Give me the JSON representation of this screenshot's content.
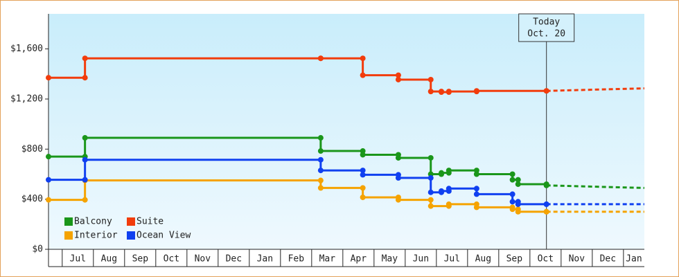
{
  "chart_data": {
    "type": "step-line",
    "xlim": [
      -0.44,
      18.67
    ],
    "xticks": [
      {
        "value": 0,
        "label": "Jul"
      },
      {
        "value": 1,
        "label": "Aug"
      },
      {
        "value": 2,
        "label": "Sep"
      },
      {
        "value": 3,
        "label": "Oct"
      },
      {
        "value": 4,
        "label": "Nov"
      },
      {
        "value": 5,
        "label": "Dec"
      },
      {
        "value": 6,
        "label": "Jan"
      },
      {
        "value": 7,
        "label": "Feb"
      },
      {
        "value": 8,
        "label": "Mar"
      },
      {
        "value": 9,
        "label": "Apr"
      },
      {
        "value": 10,
        "label": "May"
      },
      {
        "value": 11,
        "label": "Jun"
      },
      {
        "value": 12,
        "label": "Jul"
      },
      {
        "value": 13,
        "label": "Aug"
      },
      {
        "value": 14,
        "label": "Sep"
      },
      {
        "value": 15,
        "label": "Oct"
      },
      {
        "value": 16,
        "label": "Nov"
      },
      {
        "value": 17,
        "label": "Dec"
      },
      {
        "value": 18,
        "label": "Jan"
      }
    ],
    "ylim": [
      0,
      1880
    ],
    "yticks": [
      {
        "value": 0,
        "label": "$0"
      },
      {
        "value": 400,
        "label": "$400"
      },
      {
        "value": 800,
        "label": "$800"
      },
      {
        "value": 1200,
        "label": "$1,200"
      },
      {
        "value": 1600,
        "label": "$1,600"
      }
    ],
    "annotation": {
      "x": 15.53,
      "text": [
        "Today",
        "Oct. 20"
      ]
    },
    "forecast_x": [
      15.53,
      18.67
    ],
    "legend": "bottom-left",
    "series": [
      {
        "name": "Balcony",
        "color": "#1a961a",
        "x": [
          -0.44,
          0.73,
          8.29,
          9.64,
          10.78,
          11.82,
          12.16,
          12.4,
          13.29,
          14.44,
          14.62,
          15.53
        ],
        "values": [
          740,
          890,
          785,
          755,
          730,
          600,
          610,
          630,
          600,
          555,
          520,
          510
        ],
        "forecast": [
          510,
          490
        ]
      },
      {
        "name": "Suite",
        "color": "#f23c0c",
        "x": [
          -0.44,
          0.73,
          8.29,
          9.64,
          10.78,
          11.82,
          12.16,
          12.4,
          13.29,
          15.53
        ],
        "values": [
          1370,
          1525,
          1525,
          1390,
          1355,
          1260,
          1255,
          1260,
          1265,
          1265
        ],
        "forecast": [
          1265,
          1285
        ]
      },
      {
        "name": "Interior",
        "color": "#f5a300",
        "x": [
          -0.44,
          0.73,
          8.29,
          9.64,
          10.78,
          11.82,
          12.4,
          13.29,
          14.44,
          14.62,
          15.53
        ],
        "values": [
          395,
          550,
          490,
          415,
          395,
          345,
          360,
          335,
          320,
          300,
          300
        ],
        "forecast": [
          300,
          300
        ]
      },
      {
        "name": "Ocean View",
        "color": "#1040f0",
        "x": [
          -0.44,
          0.73,
          8.29,
          9.64,
          10.78,
          11.82,
          12.16,
          12.4,
          13.29,
          14.44,
          14.62,
          15.53
        ],
        "values": [
          555,
          715,
          630,
          595,
          570,
          455,
          465,
          485,
          440,
          380,
          360,
          360
        ],
        "forecast": [
          360,
          360
        ]
      }
    ]
  }
}
